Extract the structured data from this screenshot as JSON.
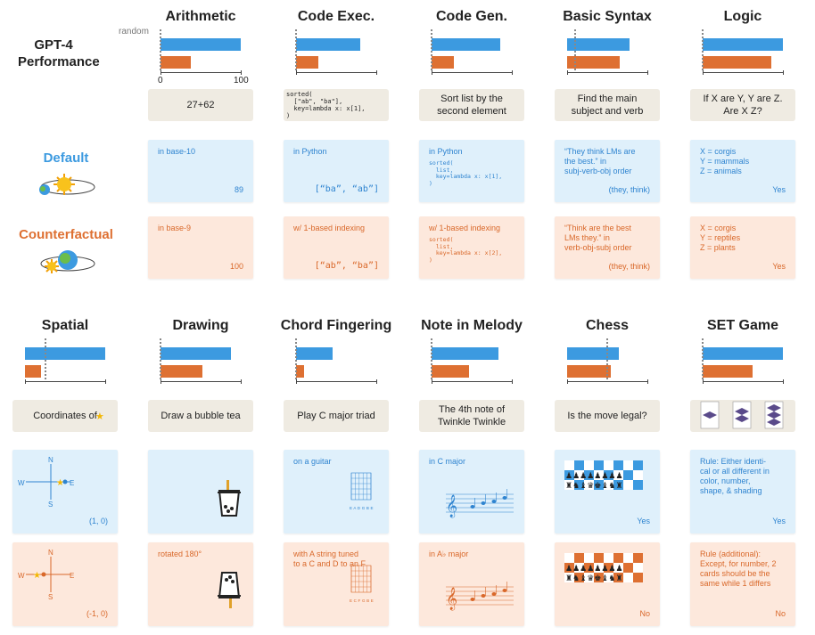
{
  "perf_label": "GPT-4\nPerformance",
  "axis": {
    "random": "random",
    "min": "0",
    "max": "100"
  },
  "rows": {
    "default": "Default",
    "counterfactual": "Counterfactual"
  },
  "colors": {
    "default": "#3c9ae0",
    "counterfactual": "#de7032"
  },
  "chart_data": {
    "type": "bar",
    "series_colors": [
      "#3c9ae0",
      "#de7032"
    ],
    "tasks": [
      {
        "name": "Arithmetic",
        "default": 100,
        "counterfactual": 38,
        "random": 0
      },
      {
        "name": "Code Exec.",
        "default": 80,
        "counterfactual": 28,
        "random": 0
      },
      {
        "name": "Code Gen.",
        "default": 86,
        "counterfactual": 28,
        "random": 0
      },
      {
        "name": "Basic Syntax",
        "default": 78,
        "counterfactual": 66,
        "random": 10
      },
      {
        "name": "Logic",
        "default": 100,
        "counterfactual": 85,
        "random": 0
      },
      {
        "name": "Spatial",
        "default": 100,
        "counterfactual": 20,
        "random": 25
      },
      {
        "name": "Drawing",
        "default": 88,
        "counterfactual": 52,
        "random": 0
      },
      {
        "name": "Chord Fingering",
        "default": 46,
        "counterfactual": 10,
        "random": 0
      },
      {
        "name": "Note in Melody",
        "default": 83,
        "counterfactual": 47,
        "random": 0
      },
      {
        "name": "Chess",
        "default": 64,
        "counterfactual": 54,
        "random": 50
      },
      {
        "name": "SET Game",
        "default": 100,
        "counterfactual": 62,
        "random": 0
      }
    ]
  },
  "prompts": [
    "27+62",
    "sorted(\n  [\"ab\", \"ba\"],\n  key=lambda x: x[1],\n)",
    "Sort list by the\nsecond element",
    "Find the main\nsubject and verb",
    "If X are Y, Y are Z.\nAre X Z?",
    "Coordinates of",
    "Draw a bubble tea",
    "Play C major triad",
    "The 4th note of\nTwinkle Twinkle",
    "Is the move legal?",
    ""
  ],
  "default_cards": [
    {
      "text": "in base-10",
      "answer": "89"
    },
    {
      "text": "in Python",
      "answer": "[“ba”, “ab”]"
    },
    {
      "text": "in Python",
      "code": "sorted(\n  list,\n  key=lambda x: x[1],\n)"
    },
    {
      "text": "“They think LMs are\nthe best.” in\nsubj-verb-obj order",
      "answer": "(they, think)"
    },
    {
      "text": "X = corgis\nY = mammals\nZ = animals",
      "answer": "Yes"
    },
    {
      "text": "",
      "answer": "(1, 0)",
      "compass": [
        "N",
        "E",
        "S",
        "W"
      ]
    },
    {
      "text": ""
    },
    {
      "text": "on a guitar",
      "strings": "E A D G B E"
    },
    {
      "text": "in C major"
    },
    {
      "text": "",
      "answer": "Yes"
    },
    {
      "text": "Rule: Either identi-\ncal or all different in\ncolor, number,\nshape, & shading",
      "answer": "Yes"
    }
  ],
  "cf_cards": [
    {
      "text": "in base-9",
      "answer": "100"
    },
    {
      "text": "w/ 1-based indexing",
      "answer": "[“ab”, “ba”]"
    },
    {
      "text": "w/ 1-based indexing",
      "code": "sorted(\n  list,\n  key=lambda x: x[2],\n)"
    },
    {
      "text": "“Think are the best\nLMs they.” in\nverb-obj-subj order",
      "answer": "(they, think)"
    },
    {
      "text": "X = corgis\nY = reptiles\nZ = plants",
      "answer": "Yes"
    },
    {
      "text": "",
      "answer": "(-1, 0)",
      "compass": [
        "N",
        "E",
        "S",
        "W"
      ]
    },
    {
      "text": "rotated 180°"
    },
    {
      "text": "with A string tuned\nto a C and D to an F",
      "strings": "E C F G B E"
    },
    {
      "text": "in A♭ major"
    },
    {
      "text": "",
      "answer": "No"
    },
    {
      "text": "Rule (additional):\nExcept, for number, 2\ncards should be the\nsame while 1 differs",
      "answer": "No"
    }
  ]
}
